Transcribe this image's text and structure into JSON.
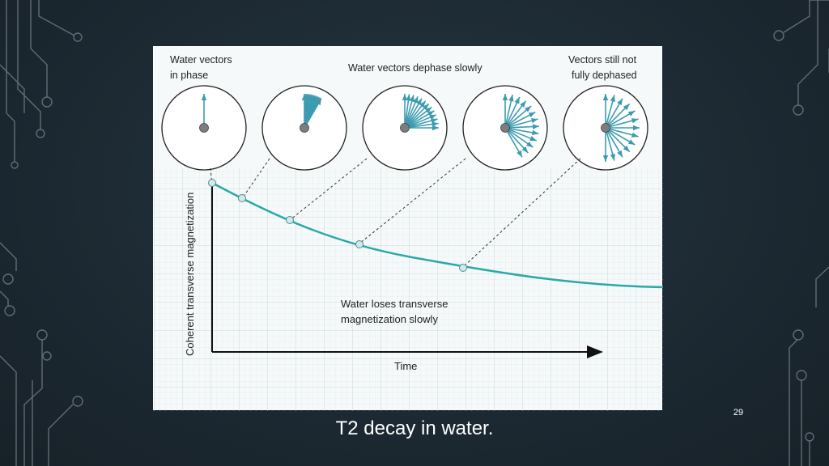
{
  "slide": {
    "caption": "T2 decay in water.",
    "slide_number": "29"
  },
  "figure": {
    "labels": {
      "in_phase_line1": "Water vectors",
      "in_phase_line2": "in phase",
      "dephase_slowly": "Water vectors dephase slowly",
      "not_dephased_line1": "Vectors still not",
      "not_dephased_line2": "fully dephased",
      "y_axis": "Coherent transverse magnetization",
      "x_axis": "Time",
      "annotation_line1": "Water loses transverse",
      "annotation_line2": "magnetization slowly"
    },
    "vector_fan_spreads_deg": [
      0,
      30,
      90,
      150,
      180
    ],
    "colors": {
      "curve": "#2aa9a8",
      "vector": "#3d9bb0",
      "grid": "#c7dde0"
    }
  }
}
